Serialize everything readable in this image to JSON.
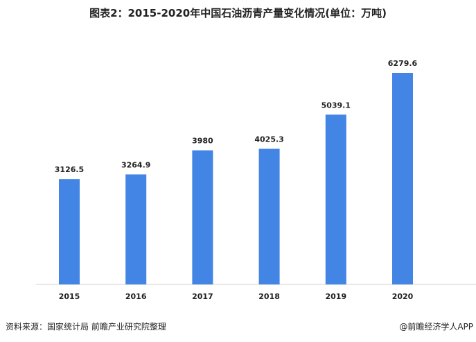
{
  "chart_data": {
    "type": "bar",
    "title": "图表2：2015-2020年中国石油沥青产量变化情况(单位：万吨)",
    "categories": [
      "2015",
      "2016",
      "2017",
      "2018",
      "2019",
      "2020"
    ],
    "values": [
      3126.5,
      3264.9,
      3980,
      4025.3,
      5039.1,
      6279.6
    ],
    "data_labels": [
      "3126.5",
      "3264.9",
      "3980",
      "4025.3",
      "5039.1",
      "6279.6"
    ],
    "xlabel": "",
    "ylabel": "",
    "grid": false,
    "bar_color": "#4285E4"
  },
  "footer": {
    "source": "资料来源：国家统计局 前瞻产业研究院整理",
    "credit": "@前瞻经济学人APP"
  }
}
